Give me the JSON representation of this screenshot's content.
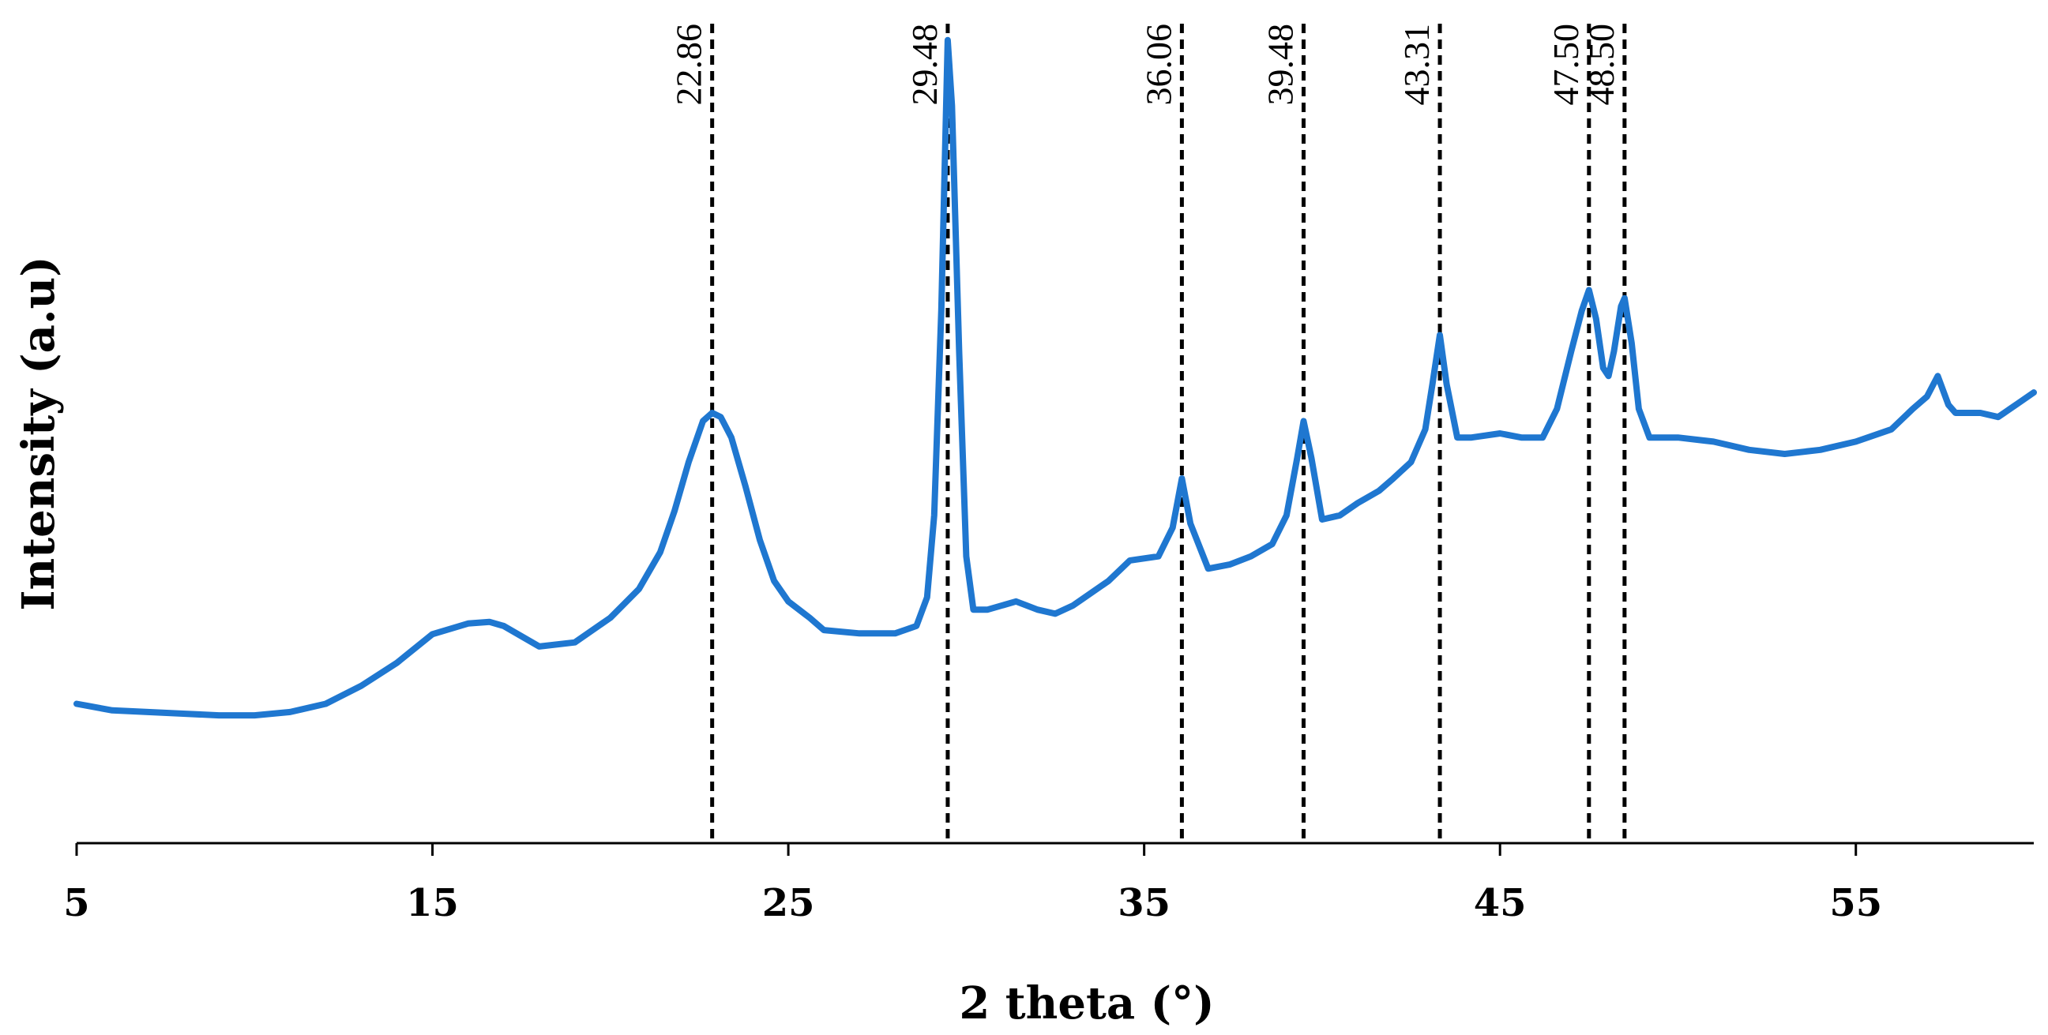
{
  "chart_data": {
    "type": "line",
    "xlabel": "2 theta (°)",
    "ylabel": "Intensity (a.u)",
    "xlim": [
      5,
      60
    ],
    "ylim": [
      0,
      100
    ],
    "x_ticks": [
      "5",
      "15",
      "25",
      "35",
      "45",
      "55"
    ],
    "y_ticks_shown": false,
    "grid": false,
    "series": [
      {
        "color": "#1F77D0",
        "points": [
          [
            5.0,
            17.0
          ],
          [
            6.0,
            16.2
          ],
          [
            7.0,
            16.0
          ],
          [
            8.0,
            15.8
          ],
          [
            9.0,
            15.6
          ],
          [
            10.0,
            15.6
          ],
          [
            11.0,
            16.0
          ],
          [
            12.0,
            17.0
          ],
          [
            13.0,
            19.2
          ],
          [
            14.0,
            22.0
          ],
          [
            15.0,
            25.5
          ],
          [
            16.0,
            26.8
          ],
          [
            16.6,
            27.0
          ],
          [
            17.0,
            26.5
          ],
          [
            18.0,
            24.0
          ],
          [
            19.0,
            24.5
          ],
          [
            20.0,
            27.5
          ],
          [
            20.8,
            31.0
          ],
          [
            21.4,
            35.5
          ],
          [
            21.8,
            40.5
          ],
          [
            22.2,
            46.5
          ],
          [
            22.6,
            51.5
          ],
          [
            22.86,
            52.5
          ],
          [
            23.1,
            52.0
          ],
          [
            23.4,
            49.5
          ],
          [
            23.8,
            43.5
          ],
          [
            24.2,
            37.0
          ],
          [
            24.6,
            32.0
          ],
          [
            25.0,
            29.5
          ],
          [
            25.6,
            27.5
          ],
          [
            26.0,
            26.0
          ],
          [
            27.0,
            25.6
          ],
          [
            28.0,
            25.6
          ],
          [
            28.6,
            26.5
          ],
          [
            28.9,
            30.0
          ],
          [
            29.1,
            40.0
          ],
          [
            29.3,
            65.0
          ],
          [
            29.48,
            98.0
          ],
          [
            29.6,
            90.0
          ],
          [
            29.8,
            60.0
          ],
          [
            30.0,
            35.0
          ],
          [
            30.2,
            28.5
          ],
          [
            30.6,
            28.5
          ],
          [
            31.4,
            29.5
          ],
          [
            32.0,
            28.5
          ],
          [
            32.5,
            28.0
          ],
          [
            33.0,
            29.0
          ],
          [
            34.0,
            32.0
          ],
          [
            34.6,
            34.5
          ],
          [
            35.4,
            35.0
          ],
          [
            35.8,
            38.5
          ],
          [
            36.06,
            44.5
          ],
          [
            36.3,
            39.0
          ],
          [
            36.8,
            33.5
          ],
          [
            37.4,
            34.0
          ],
          [
            38.0,
            35.0
          ],
          [
            38.6,
            36.5
          ],
          [
            39.0,
            40.0
          ],
          [
            39.3,
            47.0
          ],
          [
            39.48,
            51.5
          ],
          [
            39.7,
            47.0
          ],
          [
            40.0,
            39.5
          ],
          [
            40.5,
            40.0
          ],
          [
            41.0,
            41.5
          ],
          [
            41.6,
            43.0
          ],
          [
            42.0,
            44.5
          ],
          [
            42.5,
            46.5
          ],
          [
            42.9,
            50.5
          ],
          [
            43.1,
            56.0
          ],
          [
            43.31,
            62.0
          ],
          [
            43.5,
            56.0
          ],
          [
            43.8,
            49.5
          ],
          [
            44.2,
            49.5
          ],
          [
            45.0,
            50.0
          ],
          [
            45.6,
            49.5
          ],
          [
            46.2,
            49.5
          ],
          [
            46.6,
            53.0
          ],
          [
            47.0,
            60.0
          ],
          [
            47.3,
            65.0
          ],
          [
            47.5,
            67.5
          ],
          [
            47.7,
            64.0
          ],
          [
            47.9,
            58.0
          ],
          [
            48.05,
            57.0
          ],
          [
            48.2,
            60.0
          ],
          [
            48.4,
            65.5
          ],
          [
            48.5,
            66.5
          ],
          [
            48.7,
            61.0
          ],
          [
            48.9,
            53.0
          ],
          [
            49.2,
            49.5
          ],
          [
            50.0,
            49.5
          ],
          [
            51.0,
            49.0
          ],
          [
            52.0,
            48.0
          ],
          [
            53.0,
            47.5
          ],
          [
            54.0,
            48.0
          ],
          [
            55.0,
            49.0
          ],
          [
            56.0,
            50.5
          ],
          [
            56.6,
            53.0
          ],
          [
            57.0,
            54.5
          ],
          [
            57.3,
            57.0
          ],
          [
            57.6,
            53.5
          ],
          [
            57.8,
            52.5
          ],
          [
            58.5,
            52.5
          ],
          [
            59.0,
            52.0
          ],
          [
            59.5,
            53.5
          ],
          [
            60.0,
            55.0
          ]
        ]
      }
    ],
    "peak_markers": [
      "22.86",
      "29.48",
      "36.06",
      "39.48",
      "43.31",
      "47.50",
      "48.50"
    ],
    "peak_positions": [
      22.86,
      29.48,
      36.06,
      39.48,
      43.31,
      47.5,
      48.5
    ],
    "marker_style": "black dashed vertical lines"
  }
}
